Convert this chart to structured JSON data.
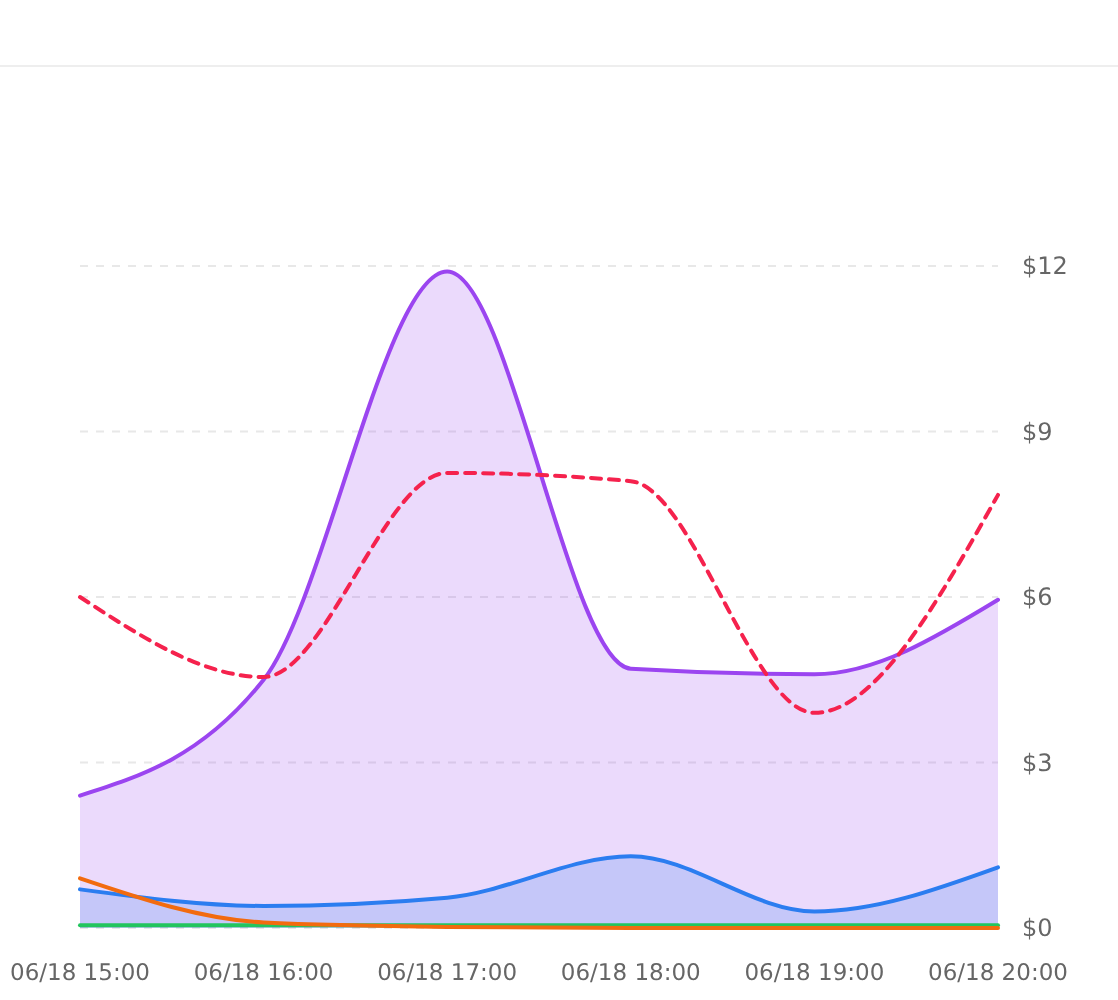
{
  "chart_data": {
    "type": "line",
    "categories": [
      "06/18 15:00",
      "06/18 16:00",
      "06/18 17:00",
      "06/18 18:00",
      "06/18 19:00",
      "06/18 20:00"
    ],
    "ylim": [
      0,
      12
    ],
    "yticks": [
      {
        "value": 0,
        "label": "$0"
      },
      {
        "value": 3,
        "label": "$3"
      },
      {
        "value": 6,
        "label": "$6"
      },
      {
        "value": 9,
        "label": "$9"
      },
      {
        "value": 12,
        "label": "$12"
      }
    ],
    "grid": "y",
    "marker": "none",
    "series": [
      {
        "type": "area",
        "color": "#9b45f0",
        "values": [
          2.4,
          4.5,
          11.9,
          4.7,
          4.6,
          5.95
        ]
      },
      {
        "type": "line",
        "color": "#f5224d",
        "line_style": "dashed",
        "values": [
          6.0,
          4.55,
          8.25,
          8.1,
          3.9,
          7.85
        ]
      },
      {
        "type": "area",
        "color": "#2b7df0",
        "values": [
          0.7,
          0.4,
          0.55,
          1.3,
          0.3,
          1.1
        ]
      },
      {
        "type": "line",
        "color": "#22c55e",
        "values": [
          0.05,
          0.05,
          0.05,
          0.05,
          0.05,
          0.05
        ]
      },
      {
        "type": "line",
        "color": "#f26b0f",
        "values": [
          0.9,
          0.1,
          0.02,
          0,
          0,
          0
        ]
      }
    ]
  }
}
